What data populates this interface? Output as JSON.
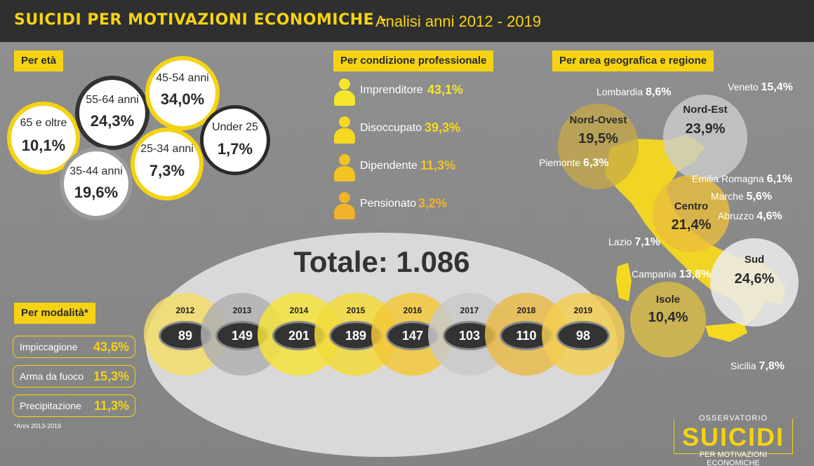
{
  "header": {
    "title": "SUICIDI PER MOTIVAZIONI ECONOMICHE -",
    "subtitle": "Analisi anni 2012 - 2019"
  },
  "eta": {
    "tag": "Per età",
    "groups": [
      {
        "label": "65 e oltre",
        "value": "10,1%",
        "pct": 10.1
      },
      {
        "label": "55-64 anni",
        "value": "24,3%",
        "pct": 24.3
      },
      {
        "label": "45-54 anni",
        "value": "34,0%",
        "pct": 34.0
      },
      {
        "label": "35-44 anni",
        "value": "19,6%",
        "pct": 19.6
      },
      {
        "label": "25-34 anni",
        "value": "7,3%",
        "pct": 7.3
      },
      {
        "label": "Under 25",
        "value": "1,7%",
        "pct": 1.7
      }
    ]
  },
  "professione": {
    "tag": "Per condizione professionale",
    "items": [
      {
        "label": "Imprenditore",
        "value": "43,1%",
        "color": "#f5e62a"
      },
      {
        "label": "Disoccupato",
        "value": "39,3%",
        "color": "#f5d920"
      },
      {
        "label": "Dipendente",
        "value": "11,3%",
        "color": "#f2c323"
      },
      {
        "label": "Pensionato",
        "value": "3,2%",
        "color": "#f0b32a"
      }
    ]
  },
  "modalita": {
    "tag": "Per modalità*",
    "items": [
      {
        "label": "Impiccagione",
        "value": "43,6%"
      },
      {
        "label": "Arma da fuoco",
        "value": "15,3%"
      },
      {
        "label": "Precipitazione",
        "value": "11,3%"
      }
    ],
    "note": "*Anni 2013-2019"
  },
  "totale": {
    "title": "Totale: 1.086",
    "years": [
      {
        "year": "2012",
        "value": "89",
        "color": "#f2dc6a"
      },
      {
        "year": "2013",
        "value": "149",
        "color": "#b0b0b0"
      },
      {
        "year": "2014",
        "value": "201",
        "color": "#f5e23c"
      },
      {
        "year": "2015",
        "value": "189",
        "color": "#f3d93a"
      },
      {
        "year": "2016",
        "value": "147",
        "color": "#f2c83a"
      },
      {
        "year": "2017",
        "value": "103",
        "color": "#c9c9c9"
      },
      {
        "year": "2018",
        "value": "110",
        "color": "#e8bb4a"
      },
      {
        "year": "2019",
        "value": "98",
        "color": "#f2cd52"
      }
    ]
  },
  "geografia": {
    "tag": "Per area geografica e regione",
    "areas": [
      {
        "label": "Nord-Ovest",
        "value": "19,5%"
      },
      {
        "label": "Nord-Est",
        "value": "23,9%"
      },
      {
        "label": "Centro",
        "value": "21,4%"
      },
      {
        "label": "Sud",
        "value": "24,6%"
      },
      {
        "label": "Isole",
        "value": "10,4%"
      }
    ],
    "regions": [
      {
        "label": "Lombardia",
        "value": "8,6%"
      },
      {
        "label": "Veneto",
        "value": "15,4%"
      },
      {
        "label": "Piemonte",
        "value": "6,3%"
      },
      {
        "label": "Emilia Romagna",
        "value": "6,1%"
      },
      {
        "label": "Marche",
        "value": "5,6%"
      },
      {
        "label": "Abruzzo",
        "value": "4,6%"
      },
      {
        "label": "Lazio",
        "value": "7,1%"
      },
      {
        "label": "Campania",
        "value": "13,8%"
      },
      {
        "label": "Sicilia",
        "value": "7,8%"
      }
    ]
  },
  "logo": {
    "top": "OSSERVATORIO",
    "main": "SUICIDI",
    "sub": "PER MOTIVAZIONI ECONOMICHE"
  }
}
